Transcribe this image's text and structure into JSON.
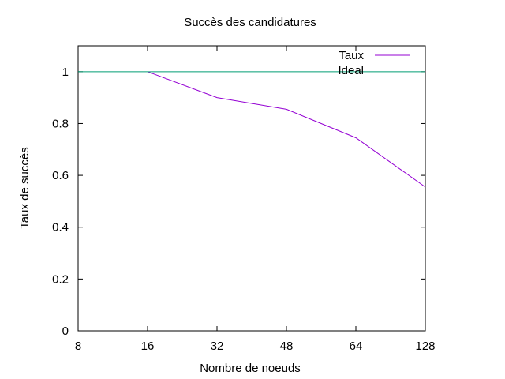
{
  "chart_data": {
    "type": "line",
    "title": "Succès des candidatures",
    "xlabel": "Nombre de noeuds",
    "ylabel": "Taux de succès",
    "x_ticks": [
      "8",
      "16",
      "32",
      "48",
      "64",
      "128"
    ],
    "x_scale": "categorical-evenly-spaced",
    "y_ticks": [
      "0",
      "0.2",
      "0.4",
      "0.6",
      "0.8",
      "1"
    ],
    "ylim": [
      0,
      1.1
    ],
    "grid": false,
    "legend_position": "top-right",
    "series": [
      {
        "name": "Taux",
        "color": "#9400d3",
        "x": [
          "16",
          "32",
          "48",
          "64",
          "128"
        ],
        "values": [
          1.0,
          0.9,
          0.855,
          0.745,
          0.555
        ]
      },
      {
        "name": "Ideal",
        "color": "#009e73",
        "x": [
          "8",
          "128"
        ],
        "values": [
          1.0,
          1.0
        ]
      }
    ]
  }
}
